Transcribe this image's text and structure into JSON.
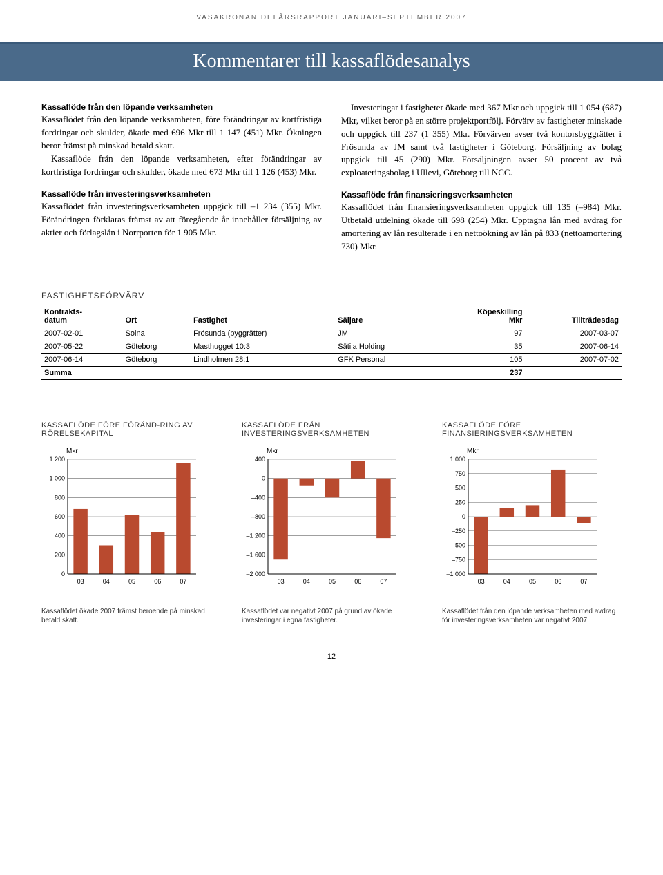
{
  "header": "VASAKRONAN DELÅRSRAPPORT JANUARI–SEPTEMBER 2007",
  "title": "Kommentarer till kassaflödesanalys",
  "body": {
    "s1_label": "Kassaflöde från den löpande verksamheten",
    "s1_text": "Kassaflödet från den löpande verksamheten, före förändringar av kortfristiga fordringar och skulder, ökade med 696 Mkr till 1 147 (451) Mkr. Ökningen beror främst på minskad betald skatt.",
    "s1_indent": "Kassaflöde från den löpande verksamheten, efter förändringar av kortfristiga fordringar och skulder, ökade med 673 Mkr till 1 126 (453) Mkr.",
    "s2_label": "Kassaflöde från investeringsverksamheten",
    "s2_text": "Kassaflödet från investeringsverksamheten uppgick till –1 234 (355) Mkr. Förändringen förklaras främst av att föregående år innehåller försäljning av aktier och förlagslån i Norrporten för 1 905 Mkr.",
    "s3_indent": "Investeringar i fastigheter ökade med 367 Mkr och uppgick till 1 054 (687) Mkr, vilket beror på en större projektportfölj. Förvärv av fastigheter minskade och uppgick till 237 (1 355) Mkr. Förvärven avser två kontorsbyggrätter i Frösunda av JM samt två fastigheter i Göteborg. Försäljning av bolag uppgick till 45 (290) Mkr. Försäljningen avser 50 procent av två exploateringsbolag i Ullevi, Göteborg till NCC.",
    "s4_label": "Kassaflöde från finansieringsverksamheten",
    "s4_text": "Kassaflödet från finansieringsverksamheten uppgick till 135 (–984) Mkr. Utbetald utdelning ökade till 698 (254) Mkr. Upptagna lån med avdrag för amortering av lån resulterade i en nettoökning av lån på 833 (nettoamortering 730) Mkr."
  },
  "table": {
    "title": "FASTIGHETSFÖRVÄRV",
    "headers": {
      "c1a": "Kontrakts-",
      "c1b": "datum",
      "c2": "Ort",
      "c3": "Fastighet",
      "c4": "Säljare",
      "c5a": "Köpeskilling",
      "c5b": "Mkr",
      "c6": "Tillträdesdag"
    },
    "rows": [
      [
        "2007-02-01",
        "Solna",
        "Frösunda (byggrätter)",
        "JM",
        "97",
        "2007-03-07"
      ],
      [
        "2007-05-22",
        "Göteborg",
        "Masthugget 10:3",
        "Sätila Holding",
        "35",
        "2007-06-14"
      ],
      [
        "2007-06-14",
        "Göteborg",
        "Lindholmen 28:1",
        "GFK Personal",
        "105",
        "2007-07-02"
      ]
    ],
    "sum_label": "Summa",
    "sum_value": "237"
  },
  "charts": {
    "c1": {
      "title": "KASSAFLÖDE FÖRE FÖRÄND-RING AV RÖRELSEKAPITAL",
      "unit": "Mkr",
      "ymin": 0,
      "ymax": 1200,
      "ystep": 200,
      "yticks": [
        "0",
        "200",
        "400",
        "600",
        "800",
        "1 000",
        "1 200"
      ],
      "xlabels": [
        "03",
        "04",
        "05",
        "06",
        "07"
      ],
      "values": [
        680,
        300,
        620,
        440,
        1160
      ],
      "bar_color": "#b94a2f",
      "grid_color": "#666666",
      "caption": "Kassaflödet ökade 2007 främst beroende på minskad betald skatt."
    },
    "c2": {
      "title": "KASSAFLÖDE FRÅN INVESTERINGSVERKSAMHETEN",
      "unit": "Mkr",
      "ymin": -2000,
      "ymax": 400,
      "ystep": 400,
      "yticks": [
        "–2 000",
        "–1 600",
        "–1 200",
        "–800",
        "–400",
        "0",
        "400"
      ],
      "xlabels": [
        "03",
        "04",
        "05",
        "06",
        "07"
      ],
      "values": [
        -1700,
        -160,
        -400,
        360,
        -1250
      ],
      "bar_color": "#b94a2f",
      "grid_color": "#666666",
      "caption": "Kassaflödet var negativt 2007 på grund av ökade investeringar i egna fastigheter."
    },
    "c3": {
      "title": "KASSAFLÖDE FÖRE FINANSIERINGSVERKSAMHETEN",
      "unit": "Mkr",
      "ymin": -1000,
      "ymax": 1000,
      "ystep": 250,
      "yticks": [
        "–1 000",
        "–750",
        "–500",
        "–250",
        "0",
        "250",
        "500",
        "750",
        "1 000"
      ],
      "xlabels": [
        "03",
        "04",
        "05",
        "06",
        "07"
      ],
      "values": [
        -1000,
        150,
        200,
        820,
        -120
      ],
      "bar_color": "#b94a2f",
      "grid_color": "#666666",
      "caption": "Kassaflödet från den löpande verksamheten med avdrag för investeringsverksamheten var negativt 2007."
    }
  },
  "page_number": "12"
}
